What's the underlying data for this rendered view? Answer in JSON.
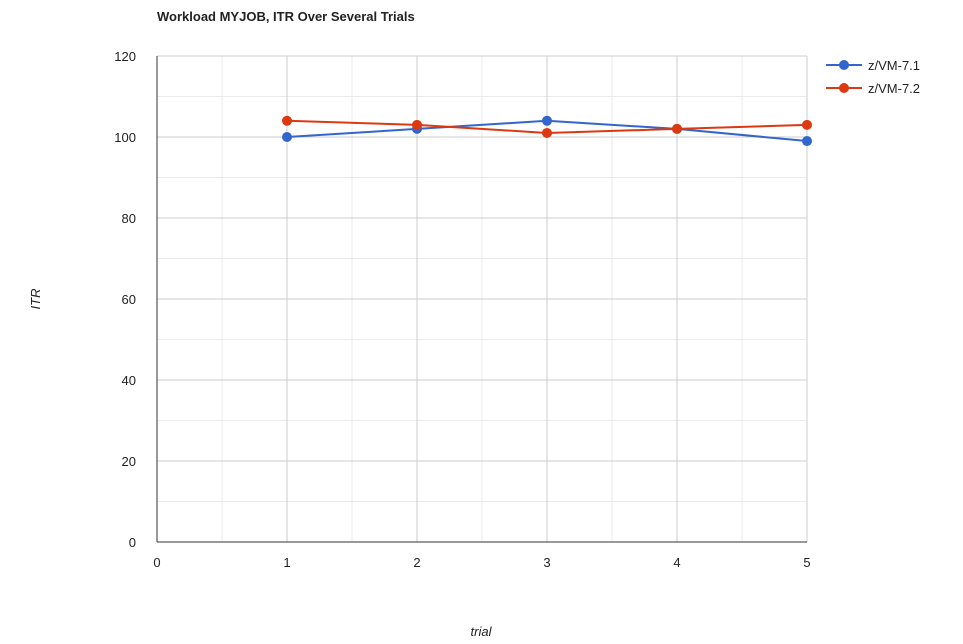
{
  "chart_data": {
    "type": "line",
    "title": "Workload MYJOB, ITR Over Several Trials",
    "xlabel": "trial",
    "ylabel": "ITR",
    "xlim": [
      0,
      5
    ],
    "ylim": [
      0,
      120
    ],
    "x_ticks": [
      "0",
      "1",
      "2",
      "3",
      "4",
      "5"
    ],
    "y_ticks": [
      "0",
      "20",
      "40",
      "60",
      "80",
      "100",
      "120"
    ],
    "x": [
      1,
      2,
      3,
      4,
      5
    ],
    "series": [
      {
        "name": "z/VM-7.1",
        "color": "#3366cc",
        "values": [
          100,
          102,
          104,
          102,
          99
        ]
      },
      {
        "name": "z/VM-7.2",
        "color": "#dc3912",
        "values": [
          104,
          103,
          101,
          102,
          103
        ]
      }
    ],
    "grid": true,
    "legend_position": "right"
  }
}
